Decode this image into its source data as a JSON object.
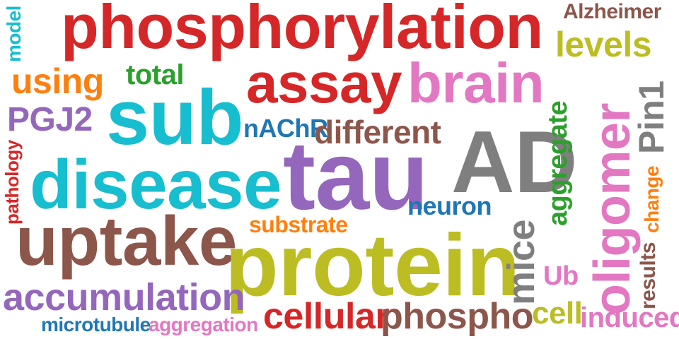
{
  "colors": {
    "red": "#d62728",
    "brown": "#8c564b",
    "olive": "#bcbd22",
    "cyan": "#17becf",
    "purple": "#9467bd",
    "pink": "#e377c2",
    "gray": "#7f7f7f",
    "green": "#2ca02c",
    "orange": "#ff7f0e",
    "blue": "#1f77b4"
  },
  "words": [
    {
      "text": "phosphorylation",
      "color": "#d62728"
    },
    {
      "text": "Alzheimer",
      "color": "#8c564b"
    },
    {
      "text": "levels",
      "color": "#bcbd22"
    },
    {
      "text": "model",
      "color": "#17becf"
    },
    {
      "text": "using",
      "color": "#ff7f0e"
    },
    {
      "text": "total",
      "color": "#2ca02c"
    },
    {
      "text": "assay",
      "color": "#d62728"
    },
    {
      "text": "brain",
      "color": "#e377c2"
    },
    {
      "text": "PGJ2",
      "color": "#9467bd"
    },
    {
      "text": "sub",
      "color": "#17becf"
    },
    {
      "text": "nAChR",
      "color": "#1f77b4"
    },
    {
      "text": "different",
      "color": "#8c564b"
    },
    {
      "text": "AD",
      "color": "#7f7f7f"
    },
    {
      "text": "aggregate",
      "color": "#2ca02c"
    },
    {
      "text": "oligomer",
      "color": "#e377c2"
    },
    {
      "text": "Pin1",
      "color": "#7f7f7f"
    },
    {
      "text": "pathology",
      "color": "#d62728"
    },
    {
      "text": "disease",
      "color": "#17becf"
    },
    {
      "text": "tau",
      "color": "#9467bd"
    },
    {
      "text": "change",
      "color": "#ff7f0e"
    },
    {
      "text": "neuron",
      "color": "#1f77b4"
    },
    {
      "text": "substrate",
      "color": "#ff7f0e"
    },
    {
      "text": "uptake",
      "color": "#8c564b"
    },
    {
      "text": "protein",
      "color": "#bcbd22"
    },
    {
      "text": "mice",
      "color": "#7f7f7f"
    },
    {
      "text": "results",
      "color": "#8c564b"
    },
    {
      "text": "Ub",
      "color": "#e377c2"
    },
    {
      "text": "accumulation",
      "color": "#9467bd"
    },
    {
      "text": "cell",
      "color": "#bcbd22"
    },
    {
      "text": "cellular",
      "color": "#d62728"
    },
    {
      "text": "phospho",
      "color": "#8c564b"
    },
    {
      "text": "induced",
      "color": "#e377c2"
    },
    {
      "text": "microtubule",
      "color": "#1f77b4"
    },
    {
      "text": "aggregation",
      "color": "#e377c2"
    }
  ]
}
